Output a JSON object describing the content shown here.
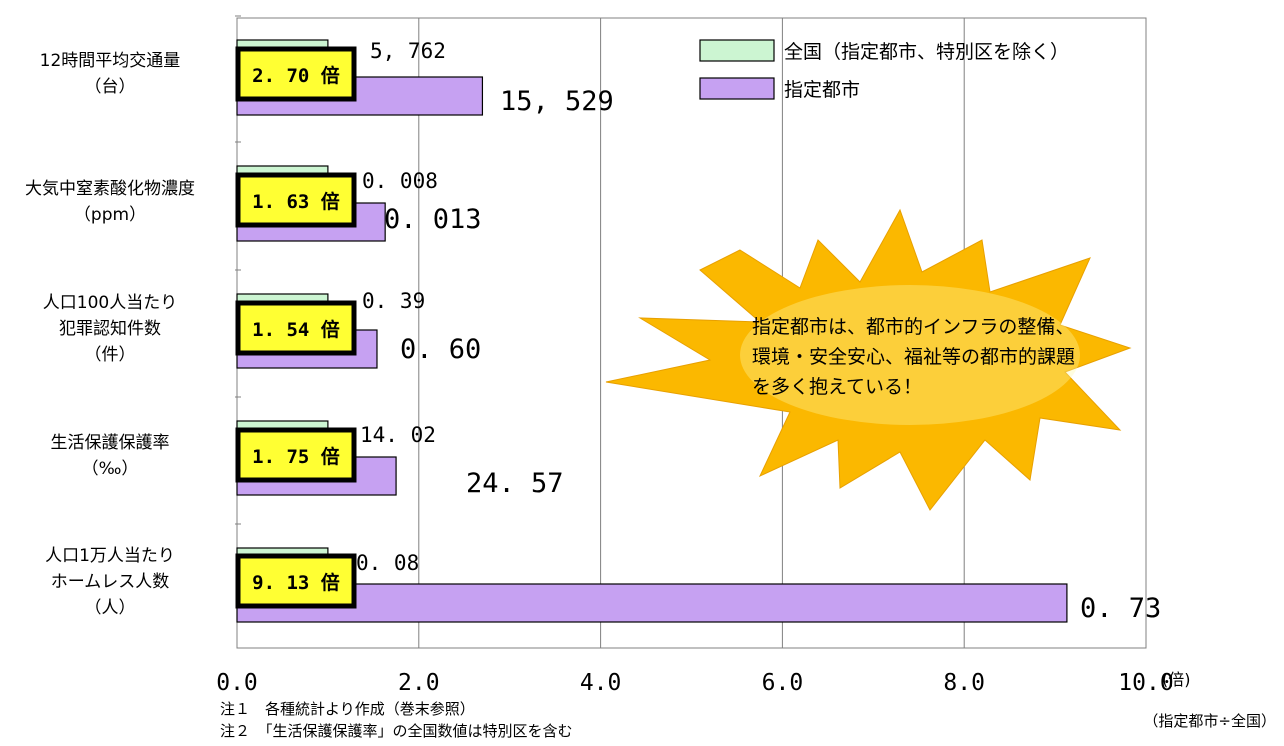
{
  "chart_data": {
    "type": "bar",
    "orientation": "horizontal",
    "xlim": [
      0,
      10
    ],
    "xticks": [
      "0.0",
      "2.0",
      "4.0",
      "6.0",
      "8.0",
      "10.0"
    ],
    "x_unit": "(倍)",
    "grid": "vertical",
    "legend_position": "top-right",
    "categories": [
      {
        "label": "12時間平均交通量\n（台）",
        "national": "5, 762",
        "designated": "15, 529",
        "ratio": 2.7,
        "ratio_label": "2. 70 倍"
      },
      {
        "label": "大気中窒素酸化物濃度\n（ppm）",
        "national": "0. 008",
        "designated": "0. 013",
        "ratio": 1.63,
        "ratio_label": "1. 63 倍"
      },
      {
        "label": "人口100人当たり\n犯罪認知件数\n（件）",
        "national": "0. 39",
        "designated": "0. 60",
        "ratio": 1.54,
        "ratio_label": "1. 54 倍"
      },
      {
        "label": "生活保護保護率\n（‰）",
        "national": "14. 02",
        "designated": "24. 57",
        "ratio": 1.75,
        "ratio_label": "1. 75 倍"
      },
      {
        "label": "人口1万人当たり\nホームレス人数\n（人）",
        "national": "0. 08",
        "designated": "0. 73",
        "ratio": 9.13,
        "ratio_label": "9. 13 倍"
      }
    ],
    "series": [
      {
        "name": "全国（指定都市、特別区を除く）",
        "color": "#ccf5d2",
        "values": [
          1,
          1,
          1,
          1,
          1
        ]
      },
      {
        "name": "指定都市",
        "color": "#c6a1f2",
        "values": [
          2.7,
          1.63,
          1.54,
          1.75,
          9.13
        ]
      }
    ]
  },
  "callout": "指定都市は、都市的インフラの整備、環境・安全安心、福祉等の都市的課題を多く抱えている！",
  "callout_color": "#fbb800",
  "ratio_box_color": "#ffff33",
  "notes": [
    "注１　各種統計より作成（巻末参照）",
    "注２　「生活保護保護率」の全国数値は特別区を含む"
  ],
  "footer_right": "（指定都市÷全国）"
}
